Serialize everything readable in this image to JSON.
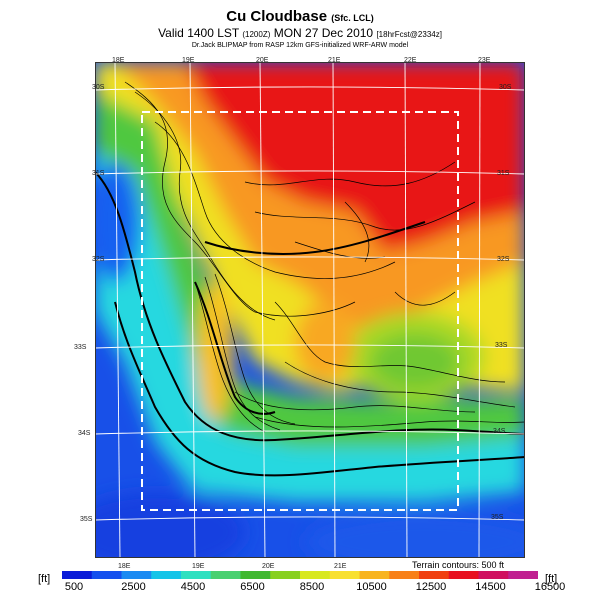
{
  "header": {
    "title": "Cu Cloudbase",
    "title_suffix": "(Sfc. LCL)",
    "valid_prefix": "Valid 1400 LST",
    "valid_zone": "(1200Z)",
    "valid_date": "MON 27 Dec 2010",
    "valid_run": "[18hrFcst@2334z]",
    "credit": "Dr.Jack BLIPMAP from RASP 12km GFS-initialized WRF-ARW model"
  },
  "map": {
    "lon_labels_top": [
      "18E",
      "19E",
      "20E",
      "21E",
      "22E",
      "23E"
    ],
    "lon_labels_bottom": [
      "18E",
      "19E",
      "20E",
      "21E"
    ],
    "lat_labels_left": [
      "30S",
      "31S",
      "32S",
      "33S",
      "34S",
      "35S"
    ],
    "lat_labels_right": [
      "30S",
      "31S",
      "32S",
      "33S",
      "34S",
      "35S"
    ],
    "terrain_note": "Terrain contours: 500 ft"
  },
  "colorbar": {
    "unit_left": "[ft]",
    "unit_right": "[ft]",
    "tick_labels": [
      "500",
      "2500",
      "4500",
      "6500",
      "8500",
      "10500",
      "12500",
      "14500",
      "16500"
    ],
    "colors": [
      "#0a1cd8",
      "#1450ee",
      "#1a8af2",
      "#14c4e8",
      "#2ee0c0",
      "#48d070",
      "#40b830",
      "#88d020",
      "#d8e820",
      "#f8e030",
      "#f8b420",
      "#f88018",
      "#f04010",
      "#e81020",
      "#d01060",
      "#c02090"
    ]
  }
}
